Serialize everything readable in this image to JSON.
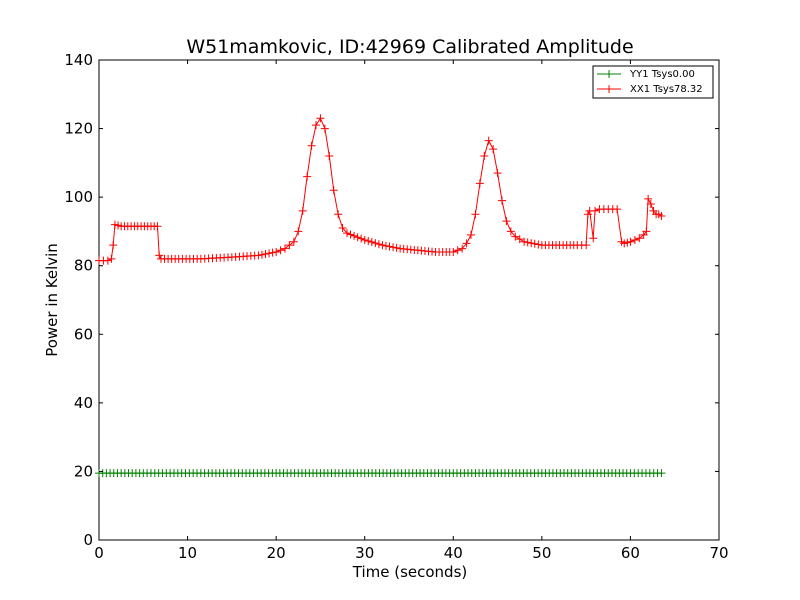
{
  "chart_data": {
    "type": "line",
    "title": "W51mamkovic, ID:42969 Calibrated Amplitude",
    "xlabel": "Time (seconds)",
    "ylabel": "Power in Kelvin",
    "xlim": [
      0,
      70
    ],
    "ylim": [
      0,
      140
    ],
    "xticks": [
      "0",
      "10",
      "20",
      "30",
      "40",
      "50",
      "60",
      "70"
    ],
    "yticks": [
      "0",
      "20",
      "40",
      "60",
      "80",
      "100",
      "120",
      "140"
    ],
    "grid": false,
    "legend_position": "top-right",
    "series": [
      {
        "name": "YY1 Tsys0.00",
        "color": "#008000",
        "x": [
          0,
          5,
          11.5,
          20,
          30,
          40,
          50,
          55,
          60,
          63.5
        ],
        "y": [
          19.5,
          19.5,
          19.5,
          19.5,
          19.5,
          19.5,
          19.5,
          19.5,
          19.5,
          19.5
        ]
      },
      {
        "name": "XX1 Tsys78.32",
        "color": "#ff0000",
        "x": [
          0,
          1.0,
          1.4,
          1.6,
          1.8,
          2.5,
          4,
          5.5,
          6.6,
          6.8,
          7,
          9,
          11.5,
          15,
          18,
          20,
          21,
          22,
          22.5,
          23,
          23.5,
          24,
          24.5,
          25,
          25.5,
          26,
          26.5,
          27,
          27.5,
          28,
          30,
          32,
          34,
          36,
          38,
          40,
          41,
          41.5,
          42,
          42.5,
          43,
          43.5,
          44,
          44.5,
          45,
          45.5,
          46,
          46.5,
          47,
          48,
          50,
          52,
          54,
          55,
          55.2,
          55.4,
          55.8,
          56,
          56.5,
          57.5,
          58.5,
          59,
          59.3,
          60,
          61,
          61.5,
          61.8,
          62,
          62.3,
          62.6,
          62.9,
          63.2,
          63.5
        ],
        "y": [
          81.5,
          81.5,
          82,
          86,
          92,
          91.5,
          91.5,
          91.5,
          91.5,
          83,
          82,
          82,
          82,
          82.5,
          83,
          84,
          85,
          87,
          90,
          96,
          106,
          115,
          121,
          123,
          120,
          112,
          102,
          95,
          91,
          89.5,
          87.5,
          86,
          85,
          84.5,
          84,
          84,
          85,
          86.5,
          89,
          95,
          104,
          112,
          116.5,
          114,
          107,
          99,
          93,
          90,
          88.5,
          87,
          86,
          86,
          86,
          86,
          95,
          96,
          88,
          96,
          96.5,
          96.5,
          96.5,
          87,
          86.5,
          87,
          88,
          89,
          90,
          99.5,
          98,
          96,
          95,
          95,
          94.5
        ]
      }
    ]
  }
}
